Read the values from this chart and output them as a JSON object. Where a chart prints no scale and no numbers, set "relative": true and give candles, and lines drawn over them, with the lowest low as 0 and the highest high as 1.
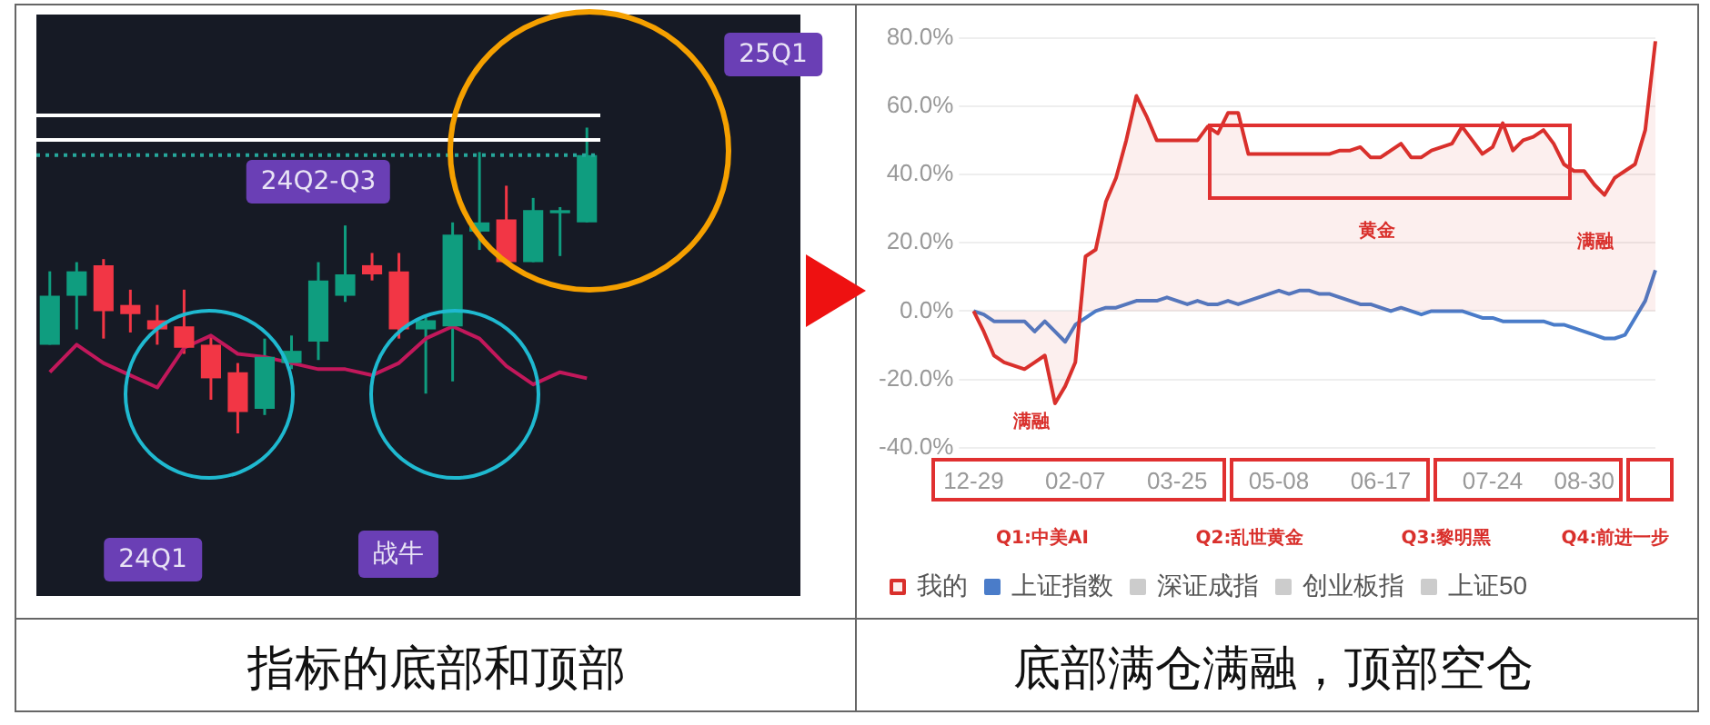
{
  "chart_data": [
    {
      "type": "candlestick",
      "relative": true,
      "categories": [
        null,
        null,
        null,
        null,
        null,
        null,
        null,
        null,
        null,
        null,
        null,
        null,
        null,
        null,
        null,
        null,
        null,
        null,
        null,
        null,
        null
      ],
      "ohlc": [
        [
          0.29,
          0.53,
          0.29,
          0.45
        ],
        [
          0.45,
          0.56,
          0.34,
          0.53
        ],
        [
          0.55,
          0.57,
          0.31,
          0.4
        ],
        [
          0.42,
          0.47,
          0.33,
          0.39
        ],
        [
          0.37,
          0.42,
          0.29,
          0.34
        ],
        [
          0.35,
          0.47,
          0.26,
          0.28
        ],
        [
          0.29,
          0.32,
          0.11,
          0.18
        ],
        [
          0.2,
          0.23,
          0,
          0.07
        ],
        [
          0.08,
          0.31,
          0.06,
          0.25
        ],
        [
          0.23,
          0.32,
          0.21,
          0.27
        ],
        [
          0.3,
          0.56,
          0.24,
          0.5
        ],
        [
          0.45,
          0.68,
          0.43,
          0.52
        ],
        [
          0.55,
          0.59,
          0.5,
          0.52
        ],
        [
          0.53,
          0.59,
          0.31,
          0.34
        ],
        [
          0.34,
          0.38,
          0.13,
          0.37
        ],
        [
          0.35,
          0.69,
          0.17,
          0.65
        ],
        [
          0.66,
          0.92,
          0.6,
          0.69
        ],
        [
          0.7,
          0.81,
          0.56,
          0.56
        ],
        [
          0.56,
          0.77,
          0.56,
          0.73
        ],
        [
          0.72,
          0.74,
          0.58,
          0.73
        ],
        [
          0.69,
          1,
          0.69,
          0.91
        ]
      ],
      "colors": [
        "#0f9d7f",
        "#0f9d7f",
        "#f23645",
        "#f23645",
        "#f23645",
        "#f23645",
        "#f23645",
        "#f23645",
        "#0f9d7f",
        "#0f9d7f",
        "#0f9d7f",
        "#0f9d7f",
        "#f23645",
        "#f23645",
        "#0f9d7f",
        "#0f9d7f",
        "#0f9d7f",
        "#f23645",
        "#0f9d7f",
        "#0f9d7f",
        "#0f9d7f"
      ],
      "series": [
        {
          "type": "line",
          "color": "#c2185b",
          "values": [
            0.2,
            0.29,
            0.23,
            0.19,
            0.15,
            0.28,
            0.32,
            0.26,
            0.25,
            0.23,
            0.21,
            0.21,
            0.19,
            0.23,
            0.31,
            0.35,
            0.31,
            0.22,
            0.16,
            0.2,
            0.18
          ]
        }
      ],
      "ref_lines": [
        {
          "axis": "y",
          "value": 1.04,
          "color": "#ffffff",
          "line_style": "solid"
        },
        {
          "axis": "y",
          "value": 0.96,
          "color": "#ffffff",
          "line_style": "solid"
        },
        {
          "axis": "y",
          "value": 0.91,
          "color": "#26a69a",
          "line_style": "dotted"
        }
      ],
      "annotations": [
        "25Q1",
        "24Q2-Q3",
        "24Q1",
        "战牛",
        "指标的底部和顶部"
      ]
    },
    {
      "type": "line",
      "categories": [
        "12-29",
        null,
        null,
        null,
        null,
        null,
        null,
        null,
        null,
        null,
        "02-07",
        null,
        null,
        null,
        null,
        null,
        null,
        null,
        null,
        null,
        "03-25",
        null,
        null,
        null,
        null,
        null,
        null,
        null,
        null,
        null,
        "05-08",
        null,
        null,
        null,
        null,
        null,
        null,
        null,
        null,
        null,
        "06-17",
        null,
        null,
        null,
        null,
        null,
        null,
        null,
        null,
        null,
        null,
        "07-24",
        null,
        null,
        null,
        null,
        null,
        null,
        null,
        null,
        "08-30",
        null,
        null,
        null,
        null,
        null,
        null,
        null
      ],
      "series": [
        {
          "name": "我的",
          "type": "area",
          "color": "#d9302c",
          "values": [
            0,
            -6,
            -13,
            -15,
            -16,
            -17,
            -15,
            -13,
            -27,
            -22,
            -15,
            16,
            18,
            32,
            39,
            50,
            63,
            57,
            50,
            50,
            50,
            50,
            50,
            54,
            52,
            58,
            58,
            46,
            46,
            46,
            46,
            46,
            46,
            46,
            46,
            46,
            47,
            47,
            48,
            45,
            45,
            47,
            49,
            45,
            45,
            47,
            48,
            49,
            54,
            50,
            46,
            48,
            55,
            47,
            50,
            51,
            53,
            49,
            43,
            41,
            41,
            37,
            34,
            39,
            41,
            43,
            53,
            79
          ]
        },
        {
          "name": "上证指数",
          "color": "#4a7cc9",
          "values": [
            0,
            -1,
            -3,
            -3,
            -3,
            -3,
            -6,
            -3,
            -6,
            -9,
            -4,
            -2,
            0,
            1,
            1,
            2,
            3,
            3,
            3,
            4,
            3,
            2,
            3,
            2,
            2,
            3,
            2,
            3,
            4,
            5,
            6,
            5,
            6,
            6,
            5,
            5,
            4,
            3,
            2,
            2,
            1,
            0,
            1,
            0,
            -1,
            0,
            0,
            0,
            0,
            -1,
            -2,
            -2,
            -3,
            -3,
            -3,
            -3,
            -3,
            -4,
            -4,
            -5,
            -6,
            -7,
            -8,
            -8,
            -7,
            -2,
            3,
            12
          ]
        },
        {
          "name": "深证成指",
          "color": "#cccccc",
          "values": [
            null,
            null,
            null,
            null,
            null,
            null,
            null,
            null,
            null,
            null,
            null,
            null,
            null,
            null,
            null,
            null,
            null,
            null,
            null,
            null,
            null,
            null,
            null,
            null,
            null,
            null,
            null,
            null,
            null,
            null,
            null,
            null,
            null,
            null,
            null,
            null,
            null,
            null,
            null,
            null,
            null,
            null,
            null,
            null,
            null,
            null,
            null,
            null,
            null,
            null,
            null,
            null,
            null,
            null,
            null,
            null,
            null,
            null,
            null,
            null,
            null,
            null,
            null,
            null,
            null,
            null,
            null,
            null
          ]
        },
        {
          "name": "创业板指",
          "color": "#cccccc",
          "values": [
            null,
            null,
            null,
            null,
            null,
            null,
            null,
            null,
            null,
            null,
            null,
            null,
            null,
            null,
            null,
            null,
            null,
            null,
            null,
            null,
            null,
            null,
            null,
            null,
            null,
            null,
            null,
            null,
            null,
            null,
            null,
            null,
            null,
            null,
            null,
            null,
            null,
            null,
            null,
            null,
            null,
            null,
            null,
            null,
            null,
            null,
            null,
            null,
            null,
            null,
            null,
            null,
            null,
            null,
            null,
            null,
            null,
            null,
            null,
            null,
            null,
            null,
            null,
            null,
            null,
            null,
            null,
            null
          ]
        },
        {
          "name": "上证50",
          "color": "#cccccc",
          "values": [
            null,
            null,
            null,
            null,
            null,
            null,
            null,
            null,
            null,
            null,
            null,
            null,
            null,
            null,
            null,
            null,
            null,
            null,
            null,
            null,
            null,
            null,
            null,
            null,
            null,
            null,
            null,
            null,
            null,
            null,
            null,
            null,
            null,
            null,
            null,
            null,
            null,
            null,
            null,
            null,
            null,
            null,
            null,
            null,
            null,
            null,
            null,
            null,
            null,
            null,
            null,
            null,
            null,
            null,
            null,
            null,
            null,
            null,
            null,
            null,
            null,
            null,
            null,
            null,
            null,
            null,
            null,
            null
          ]
        }
      ],
      "ylim": [
        -40,
        80
      ],
      "yticks": [
        {
          "value": -40,
          "label": "-40.0%"
        },
        {
          "value": -20,
          "label": "-20.0%"
        },
        {
          "value": 0,
          "label": "0.0%"
        },
        {
          "value": 20,
          "label": "20.0%"
        },
        {
          "value": 40,
          "label": "40.0%"
        },
        {
          "value": 60,
          "label": "60.0%"
        },
        {
          "value": 80,
          "label": "80.0%"
        }
      ],
      "grid": "y",
      "legend": "bottom",
      "marker": "none",
      "line_style": "solid",
      "annotations": [
        "黄金",
        "满融",
        "满融",
        "Q1:中美AI",
        "Q2:乱世黄金",
        "Q3:黎明黑",
        "Q4:前进一步",
        "底部满仓满融，顶部空仓"
      ]
    }
  ]
}
